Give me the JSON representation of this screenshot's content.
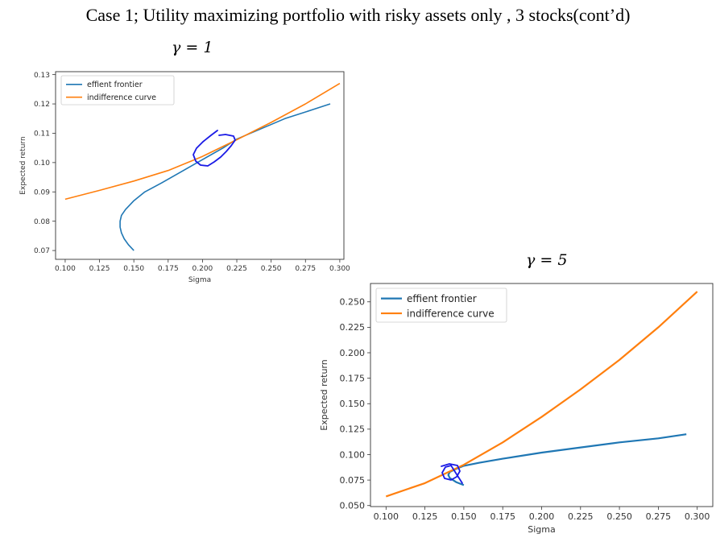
{
  "slide": {
    "title": "Case 1; Utility maximizing portfolio with risky assets only , 3 stocks(cont’d)"
  },
  "chart_data": [
    {
      "type": "line",
      "panel_label": "γ = 1",
      "xlabel": "Sigma",
      "ylabel": "Expected return",
      "xlim": [
        0.093,
        0.303
      ],
      "ylim": [
        0.067,
        0.131
      ],
      "xticks": [
        "0.100",
        "0.125",
        "0.150",
        "0.175",
        "0.200",
        "0.225",
        "0.250",
        "0.275",
        "0.300"
      ],
      "yticks": [
        "0.07",
        "0.08",
        "0.09",
        "0.10",
        "0.11",
        "0.12",
        "0.13"
      ],
      "legend_position": "upper-left",
      "series": [
        {
          "name": "effient frontier",
          "color": "#1f77b4",
          "x": [
            0.15,
            0.146,
            0.143,
            0.141,
            0.14,
            0.14,
            0.141,
            0.144,
            0.15,
            0.158,
            0.17,
            0.185,
            0.2,
            0.215,
            0.225,
            0.24,
            0.26,
            0.28,
            0.293
          ],
          "y": [
            0.07,
            0.072,
            0.074,
            0.076,
            0.078,
            0.08,
            0.082,
            0.084,
            0.087,
            0.09,
            0.093,
            0.097,
            0.101,
            0.105,
            0.108,
            0.111,
            0.115,
            0.118,
            0.12
          ]
        },
        {
          "name": "indifference curve",
          "color": "#ff7f0e",
          "x": [
            0.1,
            0.125,
            0.15,
            0.175,
            0.2,
            0.225,
            0.25,
            0.275,
            0.3
          ],
          "y": [
            0.0875,
            0.0905,
            0.0937,
            0.0973,
            0.1021,
            0.1078,
            0.1137,
            0.12,
            0.127
          ]
        }
      ],
      "annotation": "hand-drawn blue circle around tangency point"
    },
    {
      "type": "line",
      "panel_label": "γ = 5",
      "xlabel": "Sigma",
      "ylabel": "Expected return",
      "xlim": [
        0.09,
        0.31
      ],
      "ylim": [
        0.049,
        0.268
      ],
      "xticks": [
        "0.100",
        "0.125",
        "0.150",
        "0.175",
        "0.200",
        "0.225",
        "0.250",
        "0.275",
        "0.300"
      ],
      "yticks": [
        "0.050",
        "0.075",
        "0.100",
        "0.125",
        "0.150",
        "0.175",
        "0.200",
        "0.225",
        "0.250"
      ],
      "legend_position": "upper-left",
      "series": [
        {
          "name": "effient frontier",
          "color": "#1f77b4",
          "x": [
            0.15,
            0.145,
            0.141,
            0.14,
            0.141,
            0.145,
            0.15,
            0.16,
            0.175,
            0.2,
            0.225,
            0.25,
            0.275,
            0.293
          ],
          "y": [
            0.07,
            0.073,
            0.077,
            0.08,
            0.083,
            0.086,
            0.089,
            0.092,
            0.096,
            0.102,
            0.107,
            0.112,
            0.116,
            0.12
          ]
        },
        {
          "name": "indifference curve",
          "color": "#ff7f0e",
          "x": [
            0.1,
            0.125,
            0.15,
            0.175,
            0.2,
            0.225,
            0.25,
            0.275,
            0.3
          ],
          "y": [
            0.059,
            0.072,
            0.09,
            0.112,
            0.137,
            0.164,
            0.193,
            0.225,
            0.26
          ]
        }
      ],
      "annotation": "hand-drawn blue circle around tangency point"
    }
  ]
}
